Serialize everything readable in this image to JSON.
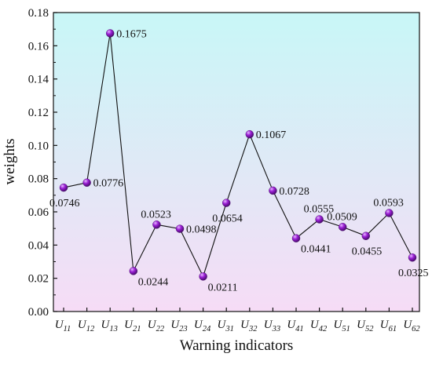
{
  "chart_data": {
    "type": "line",
    "title": "",
    "xlabel": "Warning indicators",
    "ylabel": "weights",
    "ylim": [
      0,
      0.18
    ],
    "yticks": [
      "0.00",
      "0.02",
      "0.04",
      "0.06",
      "0.08",
      "0.10",
      "0.12",
      "0.14",
      "0.16",
      "0.18"
    ],
    "categories": [
      {
        "main": "U",
        "sub": "11"
      },
      {
        "main": "U",
        "sub": "12"
      },
      {
        "main": "U",
        "sub": "13"
      },
      {
        "main": "U",
        "sub": "21"
      },
      {
        "main": "U",
        "sub": "22"
      },
      {
        "main": "U",
        "sub": "23"
      },
      {
        "main": "U",
        "sub": "24"
      },
      {
        "main": "U",
        "sub": "31"
      },
      {
        "main": "U",
        "sub": "32"
      },
      {
        "main": "U",
        "sub": "33"
      },
      {
        "main": "U",
        "sub": "41"
      },
      {
        "main": "U",
        "sub": "42"
      },
      {
        "main": "U",
        "sub": "51"
      },
      {
        "main": "U",
        "sub": "52"
      },
      {
        "main": "U",
        "sub": "61"
      },
      {
        "main": "U",
        "sub": "62"
      }
    ],
    "values": [
      0.0746,
      0.0776,
      0.1675,
      0.0244,
      0.0523,
      0.0498,
      0.0211,
      0.0654,
      0.1067,
      0.0728,
      0.0441,
      0.0555,
      0.0509,
      0.0455,
      0.0593,
      0.0325
    ],
    "data_labels": [
      "0.0746",
      "0.0776",
      "0.1675",
      "0.0244",
      "0.0523",
      "0.0498",
      "0.0211",
      "0.0654",
      "0.1067",
      "0.0728",
      "0.0441",
      "0.0555",
      "0.0509",
      "0.0455",
      "0.0593",
      "0.0325"
    ],
    "label_positions": [
      "below",
      "right",
      "right",
      "below-right",
      "above",
      "right",
      "below-right",
      "below",
      "right",
      "right",
      "below-right",
      "above",
      "above",
      "below",
      "above",
      "below"
    ],
    "grid": false,
    "legend": "none",
    "background_gradient": [
      "#c8f7f7",
      "#f6dcf6"
    ],
    "line_color": "#111111",
    "marker_color": "#9b1fd6",
    "marker_highlight": "#e7b8ff"
  }
}
